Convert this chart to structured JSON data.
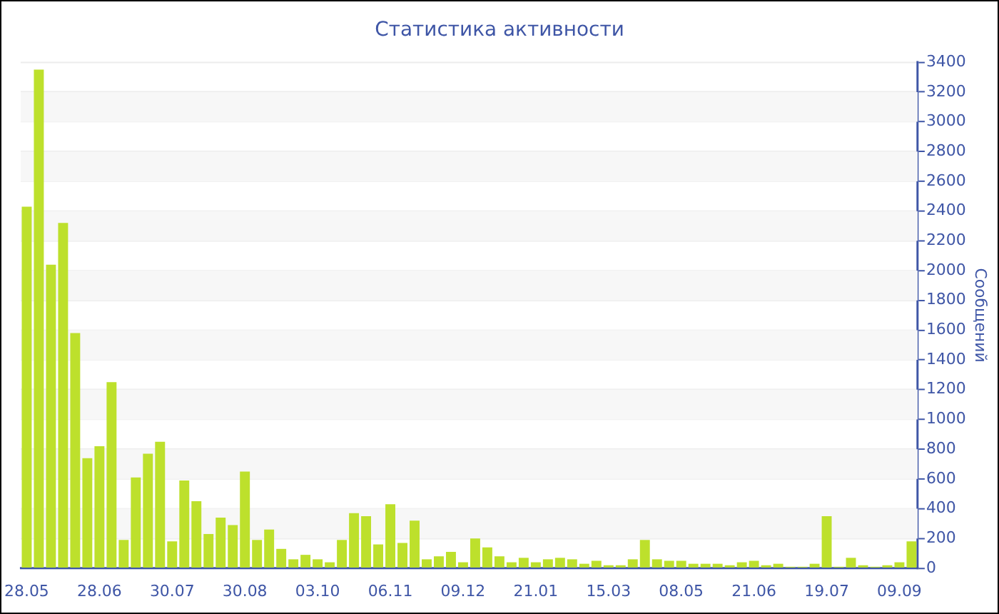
{
  "chart_data": {
    "type": "bar",
    "title": "Статистика активности",
    "ylabel": "Сообщений",
    "categories": [
      "28.05",
      null,
      null,
      null,
      null,
      null,
      "28.06",
      null,
      null,
      null,
      null,
      null,
      "30.07",
      null,
      null,
      null,
      null,
      null,
      "30.08",
      null,
      null,
      null,
      null,
      null,
      "03.10",
      null,
      null,
      null,
      null,
      null,
      "06.11",
      null,
      null,
      null,
      null,
      null,
      "09.12",
      null,
      null,
      null,
      null,
      null,
      "21.01",
      null,
      null,
      null,
      null,
      null,
      "15.03",
      null,
      null,
      null,
      null,
      null,
      "08.05",
      null,
      null,
      null,
      null,
      null,
      "21.06",
      null,
      null,
      null,
      null,
      null,
      "19.07",
      null,
      null,
      null,
      null,
      null,
      "09.09",
      null
    ],
    "values": [
      2430,
      3350,
      2040,
      2320,
      1580,
      740,
      820,
      1250,
      190,
      610,
      770,
      850,
      180,
      590,
      450,
      230,
      340,
      290,
      650,
      190,
      260,
      130,
      60,
      90,
      60,
      40,
      190,
      370,
      350,
      160,
      430,
      170,
      320,
      60,
      80,
      110,
      40,
      200,
      140,
      80,
      40,
      70,
      40,
      60,
      70,
      60,
      30,
      50,
      20,
      20,
      60,
      190,
      60,
      50,
      50,
      30,
      30,
      30,
      20,
      40,
      50,
      20,
      30,
      10,
      10,
      30,
      350,
      10,
      70,
      20,
      10,
      20,
      40,
      180
    ],
    "color": "#bde02c",
    "ylim": [
      0,
      3400
    ],
    "yticks": [
      0,
      200,
      400,
      600,
      800,
      1000,
      1200,
      1400,
      1600,
      1800,
      2000,
      2200,
      2400,
      2600,
      2800,
      3000,
      3200,
      3400
    ],
    "grid": true,
    "legend": false
  }
}
